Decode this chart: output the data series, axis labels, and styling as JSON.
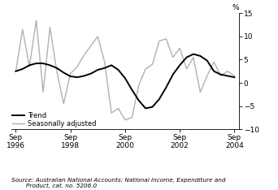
{
  "ylabel": "%",
  "ylim": [
    -10,
    15
  ],
  "yticks": [
    -10,
    -5,
    0,
    5,
    10,
    15
  ],
  "xlim_start": 1996.58,
  "xlim_end": 2004.92,
  "xtick_positions": [
    1996.75,
    1998.75,
    2000.75,
    2002.75,
    2004.75
  ],
  "xtick_labels": [
    "Sep\n1996",
    "Sep\n1998",
    "Sep\n2000",
    "Sep\n2002",
    "Sep\n2004"
  ],
  "legend_entries": [
    "Trend",
    "Seasonally adjusted"
  ],
  "trend_color": "#000000",
  "seas_color": "#b0b0b0",
  "trend_linewidth": 1.4,
  "seas_linewidth": 1.0,
  "background_color": "#ffffff",
  "trend_x": [
    1996.75,
    1997.0,
    1997.25,
    1997.5,
    1997.75,
    1998.0,
    1998.25,
    1998.5,
    1998.75,
    1999.0,
    1999.25,
    1999.5,
    1999.75,
    2000.0,
    2000.25,
    2000.5,
    2000.75,
    2001.0,
    2001.25,
    2001.5,
    2001.75,
    2002.0,
    2002.25,
    2002.5,
    2002.75,
    2003.0,
    2003.25,
    2003.5,
    2003.75,
    2004.0,
    2004.25,
    2004.5,
    2004.75
  ],
  "trend_y": [
    2.5,
    3.0,
    3.8,
    4.2,
    4.2,
    3.8,
    3.2,
    2.2,
    1.4,
    1.2,
    1.5,
    2.0,
    2.8,
    3.2,
    3.8,
    2.8,
    1.0,
    -1.5,
    -3.8,
    -5.5,
    -5.2,
    -3.5,
    -1.0,
    1.8,
    3.8,
    5.5,
    6.2,
    5.8,
    4.8,
    2.5,
    1.8,
    1.5,
    1.2
  ],
  "seas_x": [
    1996.75,
    1997.0,
    1997.25,
    1997.5,
    1997.75,
    1998.0,
    1998.25,
    1998.5,
    1998.75,
    1999.0,
    1999.25,
    1999.5,
    1999.75,
    2000.0,
    2000.25,
    2000.5,
    2000.75,
    2001.0,
    2001.25,
    2001.5,
    2001.75,
    2002.0,
    2002.25,
    2002.5,
    2002.75,
    2003.0,
    2003.25,
    2003.5,
    2003.75,
    2004.0,
    2004.25,
    2004.5,
    2004.75
  ],
  "seas_y": [
    2.5,
    11.5,
    3.5,
    13.5,
    -2.0,
    12.0,
    2.5,
    -4.5,
    2.0,
    3.5,
    6.0,
    8.0,
    10.0,
    4.5,
    -6.5,
    -5.5,
    -8.0,
    -7.5,
    -0.5,
    3.0,
    4.0,
    9.0,
    9.5,
    5.5,
    7.5,
    3.0,
    5.5,
    -2.0,
    1.5,
    4.5,
    1.5,
    2.5,
    1.5
  ],
  "source_text": "Source: Australian National Accounts: National Income, Expenditure and\n        Product, cat. no. 5206.0"
}
